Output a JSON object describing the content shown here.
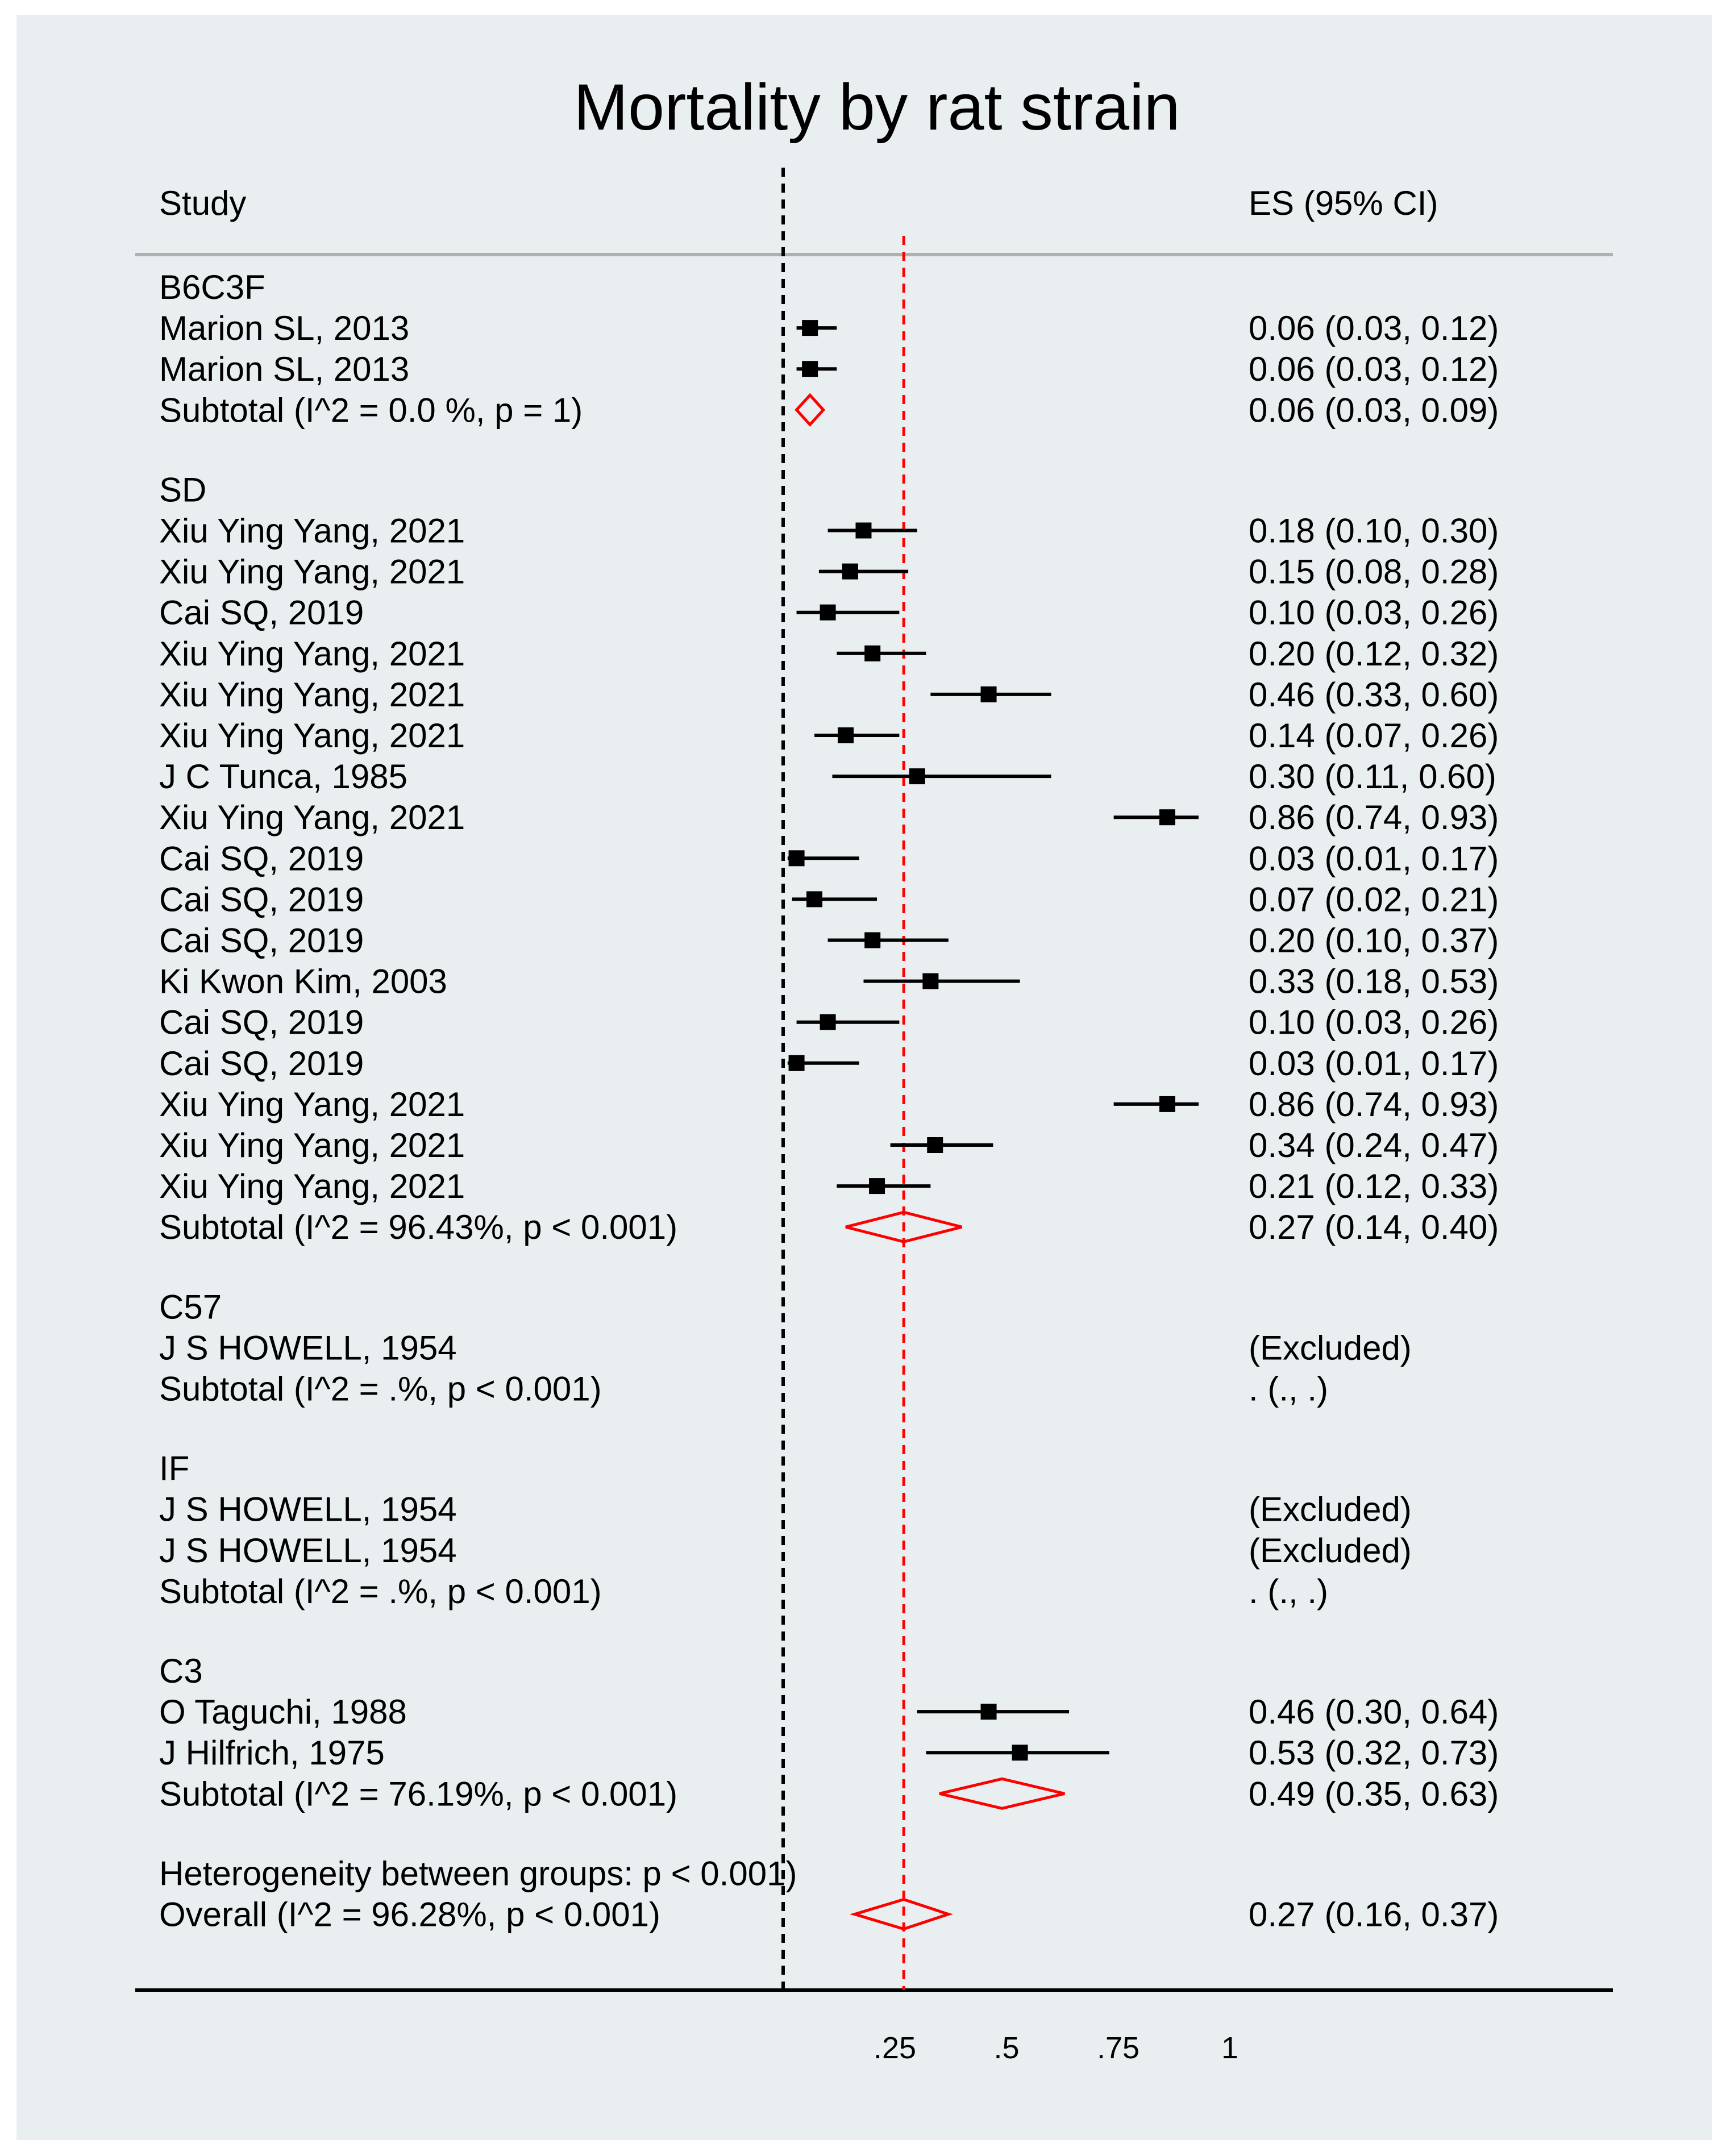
{
  "colors": {
    "background": "#e9eef0",
    "marker": "#000000",
    "pooled": "#ff0000",
    "null_line": "#000000",
    "overall_line": "#ff0000",
    "separator": "#b0b0b0"
  },
  "chart_data": {
    "type": "forest",
    "title": "Mortality by rat strain",
    "header_study": "Study",
    "header_es": "ES (95% CI)",
    "x_ticks": [
      {
        "value": 0.25,
        "label": ".25"
      },
      {
        "value": 0.5,
        "label": ".5"
      },
      {
        "value": 0.75,
        "label": ".75"
      },
      {
        "value": 1,
        "label": "1"
      }
    ],
    "xlim": [
      0,
      1
    ],
    "null_line_value": 0,
    "overall_line_value": 0.27,
    "groups": [
      {
        "name": "B6C3F",
        "studies": [
          {
            "label": "Marion SL, 2013",
            "es": 0.06,
            "lo": 0.03,
            "hi": 0.12,
            "text": "0.06 (0.03, 0.12)"
          },
          {
            "label": "Marion SL, 2013",
            "es": 0.06,
            "lo": 0.03,
            "hi": 0.12,
            "text": "0.06 (0.03, 0.12)"
          }
        ],
        "subtotal": {
          "label": "Subtotal  (I^2 = 0.0 %, p = 1)",
          "es": 0.06,
          "lo": 0.03,
          "hi": 0.09,
          "text": "0.06 (0.03, 0.09)"
        }
      },
      {
        "name": "SD",
        "studies": [
          {
            "label": "Xiu Ying Yang, 2021",
            "es": 0.18,
            "lo": 0.1,
            "hi": 0.3,
            "text": "0.18 (0.10, 0.30)"
          },
          {
            "label": "Xiu Ying Yang, 2021",
            "es": 0.15,
            "lo": 0.08,
            "hi": 0.28,
            "text": "0.15 (0.08, 0.28)"
          },
          {
            "label": "Cai SQ, 2019",
            "es": 0.1,
            "lo": 0.03,
            "hi": 0.26,
            "text": "0.10 (0.03, 0.26)"
          },
          {
            "label": "Xiu Ying Yang, 2021",
            "es": 0.2,
            "lo": 0.12,
            "hi": 0.32,
            "text": "0.20 (0.12, 0.32)"
          },
          {
            "label": "Xiu Ying Yang, 2021",
            "es": 0.46,
            "lo": 0.33,
            "hi": 0.6,
            "text": "0.46 (0.33, 0.60)"
          },
          {
            "label": "Xiu Ying Yang, 2021",
            "es": 0.14,
            "lo": 0.07,
            "hi": 0.26,
            "text": "0.14 (0.07, 0.26)"
          },
          {
            "label": "J C Tunca, 1985",
            "es": 0.3,
            "lo": 0.11,
            "hi": 0.6,
            "text": "0.30 (0.11, 0.60)"
          },
          {
            "label": "Xiu Ying Yang, 2021",
            "es": 0.86,
            "lo": 0.74,
            "hi": 0.93,
            "text": "0.86 (0.74, 0.93)"
          },
          {
            "label": "Cai SQ, 2019",
            "es": 0.03,
            "lo": 0.01,
            "hi": 0.17,
            "text": "0.03 (0.01, 0.17)"
          },
          {
            "label": "Cai SQ, 2019",
            "es": 0.07,
            "lo": 0.02,
            "hi": 0.21,
            "text": "0.07 (0.02, 0.21)"
          },
          {
            "label": "Cai SQ, 2019",
            "es": 0.2,
            "lo": 0.1,
            "hi": 0.37,
            "text": "0.20 (0.10, 0.37)"
          },
          {
            "label": "Ki Kwon Kim, 2003",
            "es": 0.33,
            "lo": 0.18,
            "hi": 0.53,
            "text": "0.33 (0.18, 0.53)"
          },
          {
            "label": "Cai SQ, 2019",
            "es": 0.1,
            "lo": 0.03,
            "hi": 0.26,
            "text": "0.10 (0.03, 0.26)"
          },
          {
            "label": "Cai SQ, 2019",
            "es": 0.03,
            "lo": 0.01,
            "hi": 0.17,
            "text": "0.03 (0.01, 0.17)"
          },
          {
            "label": "Xiu Ying Yang, 2021",
            "es": 0.86,
            "lo": 0.74,
            "hi": 0.93,
            "text": "0.86 (0.74, 0.93)"
          },
          {
            "label": "Xiu Ying Yang, 2021",
            "es": 0.34,
            "lo": 0.24,
            "hi": 0.47,
            "text": "0.34 (0.24, 0.47)"
          },
          {
            "label": "Xiu Ying Yang, 2021",
            "es": 0.21,
            "lo": 0.12,
            "hi": 0.33,
            "text": "0.21 (0.12, 0.33)"
          }
        ],
        "subtotal": {
          "label": "Subtotal  (I^2 = 96.43%, p < 0.001)",
          "es": 0.27,
          "lo": 0.14,
          "hi": 0.4,
          "text": "0.27 (0.14, 0.40)"
        }
      },
      {
        "name": "C57",
        "studies": [
          {
            "label": "J S HOWELL, 1954",
            "es": null,
            "lo": null,
            "hi": null,
            "text": "(Excluded)"
          }
        ],
        "subtotal": {
          "label": "Subtotal  (I^2 = .%, p < 0.001)",
          "es": null,
          "lo": null,
          "hi": null,
          "text": ". (., .)"
        }
      },
      {
        "name": "IF",
        "studies": [
          {
            "label": "J S HOWELL, 1954",
            "es": null,
            "lo": null,
            "hi": null,
            "text": "(Excluded)"
          },
          {
            "label": "J S HOWELL, 1954",
            "es": null,
            "lo": null,
            "hi": null,
            "text": "(Excluded)"
          }
        ],
        "subtotal": {
          "label": "Subtotal  (I^2 = .%, p < 0.001)",
          "es": null,
          "lo": null,
          "hi": null,
          "text": ". (., .)"
        }
      },
      {
        "name": "C3",
        "studies": [
          {
            "label": "O Taguchi, 1988",
            "es": 0.46,
            "lo": 0.3,
            "hi": 0.64,
            "text": "0.46 (0.30, 0.64)"
          },
          {
            "label": "J Hilfrich, 1975",
            "es": 0.53,
            "lo": 0.32,
            "hi": 0.73,
            "text": "0.53 (0.32, 0.73)"
          }
        ],
        "subtotal": {
          "label": "Subtotal  (I^2 = 76.19%, p < 0.001)",
          "es": 0.49,
          "lo": 0.35,
          "hi": 0.63,
          "text": "0.49 (0.35, 0.63)"
        }
      }
    ],
    "heterogeneity_between": "Heterogeneity between groups: p < 0.001)",
    "overall": {
      "label": "Overall  (I^2 = 96.28%, p < 0.001)",
      "es": 0.27,
      "lo": 0.16,
      "hi": 0.37,
      "text": "0.27 (0.16, 0.37)"
    }
  }
}
